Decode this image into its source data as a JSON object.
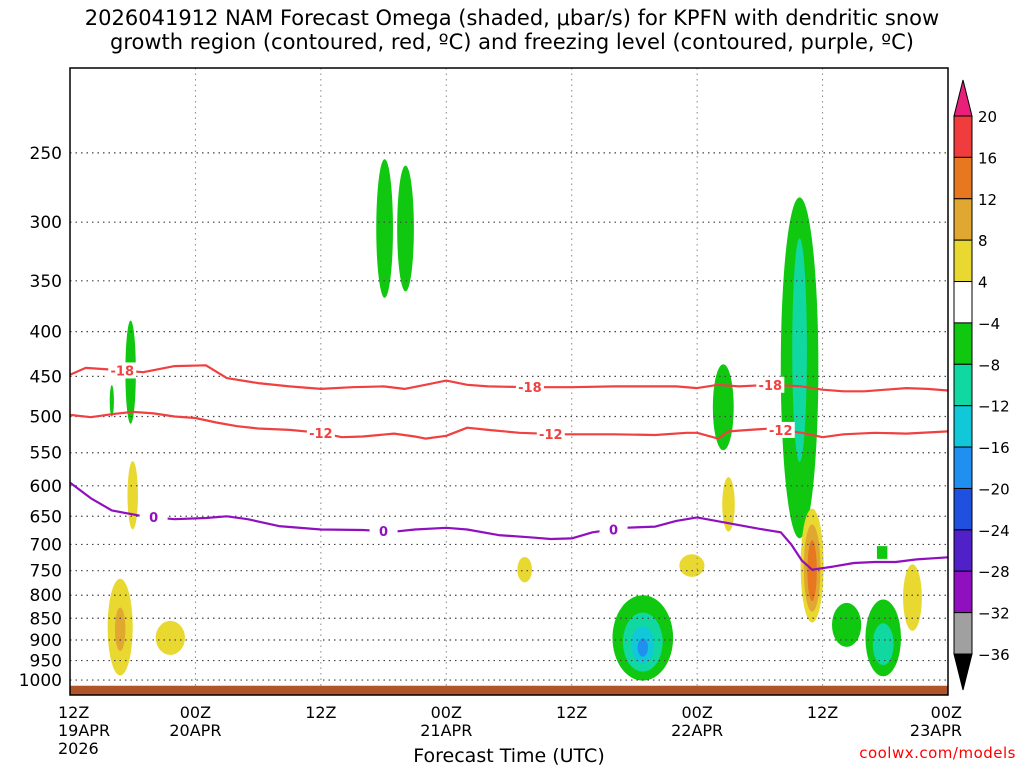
{
  "title": {
    "line1": "2026041912 NAM Forecast Omega (shaded, μbar/s) for KPFN with dendritic snow",
    "line2": "growth region (contoured, red, ºC) and freezing level (contoured, purple, ºC)"
  },
  "watermark": "coolwx.com/models",
  "chart_data": {
    "type": "time-height cross section",
    "xlabel": "Forecast Time (UTC)",
    "ylabel": "Pressure (hPa)",
    "x_range_hours": [
      0,
      84
    ],
    "y_range_hpa": [
      200,
      1040
    ],
    "x_ticks": [
      {
        "hour": 0,
        "label": "12Z",
        "sub": "19APR",
        "sub2": "2026"
      },
      {
        "hour": 12,
        "label": "00Z",
        "sub": "20APR"
      },
      {
        "hour": 24,
        "label": "12Z",
        "sub": ""
      },
      {
        "hour": 36,
        "label": "00Z",
        "sub": "21APR"
      },
      {
        "hour": 48,
        "label": "12Z",
        "sub": ""
      },
      {
        "hour": 60,
        "label": "00Z",
        "sub": "22APR"
      },
      {
        "hour": 72,
        "label": "12Z",
        "sub": ""
      },
      {
        "hour": 84,
        "label": "00Z",
        "sub": "23APR"
      }
    ],
    "y_ticks": [
      250,
      300,
      350,
      400,
      450,
      500,
      550,
      600,
      650,
      700,
      750,
      800,
      850,
      900,
      950,
      1000
    ],
    "colorbar": {
      "levels": [
        "20",
        "16",
        "12",
        "8",
        "4",
        "−4",
        "−8",
        "−12",
        "−16",
        "−20",
        "−24",
        "−28",
        "−32",
        "−36"
      ],
      "colors": [
        "#e8207a",
        "#f03c3c",
        "#e87820",
        "#e0a830",
        "#e8d830",
        "#ffffff",
        "#10c810",
        "#10d8a0",
        "#10c8d8",
        "#2090f0",
        "#2050e0",
        "#5020c8",
        "#9010c0",
        "#a0a0a0",
        "#000000"
      ]
    },
    "contours": [
      {
        "name": "dgz-minus18",
        "color": "#f04040",
        "label": "-18",
        "points": [
          [
            0,
            448
          ],
          [
            1.5,
            440
          ],
          [
            4,
            442
          ],
          [
            7,
            445
          ],
          [
            10,
            438
          ],
          [
            13,
            437
          ],
          [
            15,
            452
          ],
          [
            18,
            458
          ],
          [
            21,
            462
          ],
          [
            24,
            465
          ],
          [
            27,
            463
          ],
          [
            30,
            462
          ],
          [
            32,
            465
          ],
          [
            34,
            460
          ],
          [
            36,
            455
          ],
          [
            38,
            460
          ],
          [
            40,
            462
          ],
          [
            44,
            463
          ],
          [
            48,
            463
          ],
          [
            52,
            462
          ],
          [
            55,
            462
          ],
          [
            58,
            462
          ],
          [
            60,
            464
          ],
          [
            62,
            460
          ],
          [
            64,
            462
          ],
          [
            67,
            460
          ],
          [
            70,
            462
          ],
          [
            72,
            466
          ],
          [
            74,
            468
          ],
          [
            76,
            468
          ],
          [
            78,
            466
          ],
          [
            80,
            464
          ],
          [
            82,
            465
          ],
          [
            84,
            467
          ]
        ],
        "label_hours": [
          5,
          44,
          67
        ]
      },
      {
        "name": "dgz-minus12",
        "color": "#f04040",
        "label": "-12",
        "points": [
          [
            0,
            498
          ],
          [
            2,
            501
          ],
          [
            4,
            497
          ],
          [
            6,
            494
          ],
          [
            8,
            496
          ],
          [
            10,
            500
          ],
          [
            12,
            502
          ],
          [
            14,
            508
          ],
          [
            16,
            513
          ],
          [
            18,
            516
          ],
          [
            21,
            518
          ],
          [
            24,
            522
          ],
          [
            26,
            528
          ],
          [
            28,
            527
          ],
          [
            31,
            523
          ],
          [
            33,
            527
          ],
          [
            34,
            530
          ],
          [
            36,
            526
          ],
          [
            38,
            515
          ],
          [
            40,
            518
          ],
          [
            43,
            522
          ],
          [
            47,
            524
          ],
          [
            52,
            524
          ],
          [
            56,
            525
          ],
          [
            59,
            522
          ],
          [
            60,
            522
          ],
          [
            62,
            530
          ],
          [
            63,
            520
          ],
          [
            65,
            518
          ],
          [
            67,
            516
          ],
          [
            70,
            522
          ],
          [
            72,
            528
          ],
          [
            74,
            524
          ],
          [
            77,
            522
          ],
          [
            80,
            523
          ],
          [
            84,
            520
          ]
        ],
        "label_hours": [
          24,
          46,
          68
        ]
      },
      {
        "name": "freezing-level",
        "color": "#9010c0",
        "label": "0",
        "points": [
          [
            0,
            595
          ],
          [
            2,
            620
          ],
          [
            4,
            640
          ],
          [
            7,
            650
          ],
          [
            10,
            655
          ],
          [
            13,
            653
          ],
          [
            15,
            650
          ],
          [
            17,
            655
          ],
          [
            20,
            667
          ],
          [
            24,
            673
          ],
          [
            28,
            674
          ],
          [
            31,
            677
          ],
          [
            33,
            673
          ],
          [
            36,
            670
          ],
          [
            38,
            673
          ],
          [
            41,
            683
          ],
          [
            44,
            687
          ],
          [
            46,
            690
          ],
          [
            48,
            689
          ],
          [
            50,
            678
          ],
          [
            53,
            670
          ],
          [
            56,
            668
          ],
          [
            58,
            658
          ],
          [
            60,
            652
          ],
          [
            63,
            662
          ],
          [
            66,
            672
          ],
          [
            68,
            678
          ],
          [
            69,
            700
          ],
          [
            70,
            730
          ],
          [
            71,
            748
          ],
          [
            73,
            742
          ],
          [
            75,
            735
          ],
          [
            77,
            733
          ],
          [
            79,
            733
          ],
          [
            81,
            728
          ],
          [
            84,
            724
          ]
        ],
        "label_hours": [
          8,
          30,
          52
        ]
      }
    ],
    "omega_regions": [
      {
        "name": "green-300-left",
        "color": "#10c810",
        "hour": 30.1,
        "pressure": 305,
        "half_hours": 0.8,
        "half_hpa": 55
      },
      {
        "name": "green-300-right",
        "color": "#10c810",
        "hour": 32.1,
        "pressure": 305,
        "half_hours": 0.8,
        "half_hpa": 50
      },
      {
        "name": "green-420-a",
        "color": "#10c810",
        "hour": 5.8,
        "pressure": 445,
        "half_hours": 0.5,
        "half_hpa": 60
      },
      {
        "name": "green-460-b",
        "color": "#10c810",
        "hour": 4,
        "pressure": 480,
        "half_hours": 0.2,
        "half_hpa": 20
      },
      {
        "name": "green-470-c",
        "color": "#10c810",
        "hour": 62.5,
        "pressure": 488,
        "half_hours": 1,
        "half_hpa": 55
      },
      {
        "name": "green-column",
        "color": "#10c810",
        "hour": 69.8,
        "pressure": 440,
        "half_hours": 1.8,
        "half_hpa": 185
      },
      {
        "name": "teal-column",
        "color": "#10d8a0",
        "hour": 69.8,
        "pressure": 420,
        "half_hours": 0.7,
        "half_hpa": 120
      },
      {
        "name": "yellow-600",
        "color": "#e8d830",
        "hour": 6,
        "pressure": 615,
        "half_hours": 0.5,
        "half_hpa": 55
      },
      {
        "name": "yellow-630",
        "color": "#e8d830",
        "hour": 63,
        "pressure": 630,
        "half_hours": 0.6,
        "half_hpa": 45
      },
      {
        "name": "yellow-740a",
        "color": "#e8d830",
        "hour": 43.5,
        "pressure": 748,
        "half_hours": 0.7,
        "half_hpa": 25
      },
      {
        "name": "yellow-740b",
        "color": "#e8d830",
        "hour": 59.5,
        "pressure": 740,
        "half_hours": 1.2,
        "half_hpa": 22
      },
      {
        "name": "yellow-860",
        "color": "#e8d830",
        "hour": 4.8,
        "pressure": 870,
        "half_hours": 1.2,
        "half_hpa": 110
      },
      {
        "name": "orange-870",
        "color": "#e0a830",
        "hour": 4.8,
        "pressure": 875,
        "half_hours": 0.5,
        "half_hpa": 50
      },
      {
        "name": "yellow-890",
        "color": "#e8d830",
        "hour": 9.6,
        "pressure": 895,
        "half_hours": 1.4,
        "half_hpa": 40
      },
      {
        "name": "yellow-720",
        "color": "#e8d830",
        "hour": 71,
        "pressure": 740,
        "half_hours": 1.1,
        "half_hpa": 110
      },
      {
        "name": "amber-720",
        "color": "#e0a830",
        "hour": 71,
        "pressure": 745,
        "half_hours": 0.8,
        "half_hpa": 85
      },
      {
        "name": "orange-720",
        "color": "#e87820",
        "hour": 71,
        "pressure": 750,
        "half_hours": 0.45,
        "half_hpa": 60
      },
      {
        "name": "yellow-790",
        "color": "#e8d830",
        "hour": 80.6,
        "pressure": 805,
        "half_hours": 0.9,
        "half_hpa": 70
      },
      {
        "name": "green-880-a",
        "color": "#10c810",
        "hour": 54.8,
        "pressure": 895,
        "half_hours": 2.9,
        "half_hpa": 100
      },
      {
        "name": "teal-880-a",
        "color": "#10d8a0",
        "hour": 54.8,
        "pressure": 905,
        "half_hours": 1.9,
        "half_hpa": 70
      },
      {
        "name": "cyan-880-a",
        "color": "#10c8d8",
        "hour": 54.8,
        "pressure": 912,
        "half_hours": 1.1,
        "half_hpa": 45
      },
      {
        "name": "blue-880-a",
        "color": "#2090f0",
        "hour": 54.8,
        "pressure": 918,
        "half_hours": 0.5,
        "half_hpa": 22
      },
      {
        "name": "green-860-b",
        "color": "#10c810",
        "hour": 74.3,
        "pressure": 865,
        "half_hours": 1.4,
        "half_hpa": 50
      },
      {
        "name": "green-890-c",
        "color": "#10c810",
        "hour": 77.8,
        "pressure": 895,
        "half_hours": 1.7,
        "half_hpa": 90
      },
      {
        "name": "teal-890-c",
        "color": "#10d8a0",
        "hour": 77.8,
        "pressure": 910,
        "half_hours": 1,
        "half_hpa": 50
      },
      {
        "name": "green-square",
        "color": "#10c810",
        "hour": 77.7,
        "pressure": 715,
        "half_hours": 0.5,
        "half_hpa": 12
      }
    ],
    "terrain_pressure_hpa": 1015
  }
}
